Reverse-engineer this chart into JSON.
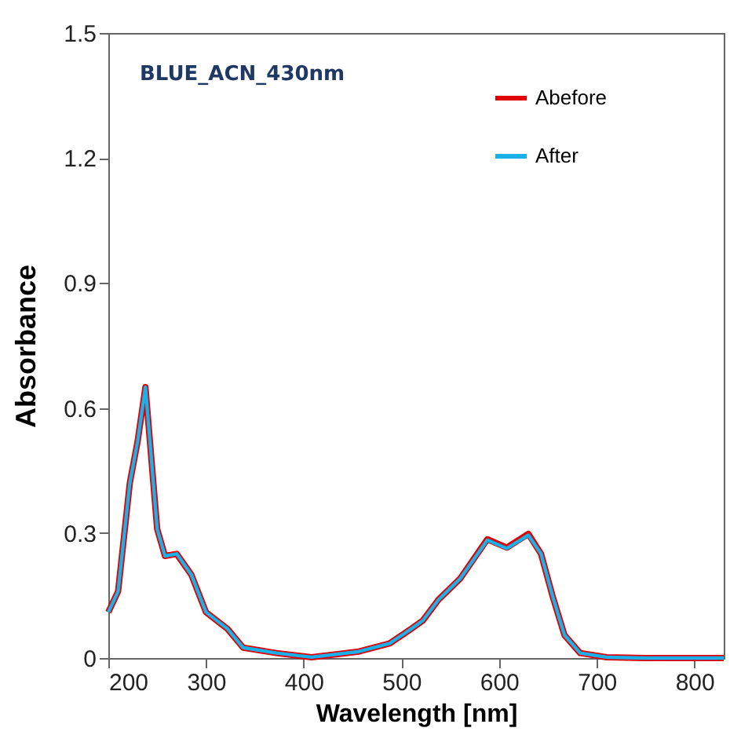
{
  "chart_data": {
    "type": "line",
    "xlabel": "Wavelength [nm]",
    "ylabel": "Absorbance",
    "annotations": [
      "BLUE_ACN_430nm"
    ],
    "x": [
      200,
      210,
      222,
      230,
      238,
      250,
      258,
      270,
      285,
      300,
      322,
      338,
      372,
      408,
      455,
      488,
      510,
      522,
      538,
      560,
      588,
      608,
      630,
      643,
      655,
      667,
      683,
      710,
      750,
      800,
      830
    ],
    "series": [
      {
        "name": "Abefore",
        "color": "#e00000",
        "values": [
          0.11,
          0.16,
          0.42,
          0.52,
          0.65,
          0.31,
          0.245,
          0.25,
          0.2,
          0.11,
          0.07,
          0.025,
          0.012,
          0.002,
          0.015,
          0.035,
          0.07,
          0.09,
          0.14,
          0.19,
          0.285,
          0.265,
          0.298,
          0.25,
          0.147,
          0.055,
          0.012,
          0.002,
          0,
          0,
          0
        ]
      },
      {
        "name": "After",
        "color": "#1ab0e8",
        "values": [
          0.11,
          0.16,
          0.42,
          0.52,
          0.65,
          0.31,
          0.245,
          0.25,
          0.2,
          0.11,
          0.07,
          0.025,
          0.012,
          0.002,
          0.015,
          0.035,
          0.07,
          0.09,
          0.14,
          0.19,
          0.283,
          0.263,
          0.295,
          0.25,
          0.147,
          0.055,
          0.012,
          0.002,
          0,
          0,
          0
        ]
      }
    ],
    "xlim": [
      200,
      830
    ],
    "xticks": [
      200,
      300,
      400,
      500,
      600,
      700,
      800
    ],
    "ylim": [
      0,
      1.5
    ],
    "yticks": [
      0,
      0.3,
      0.6,
      0.9,
      1.2,
      1.5
    ],
    "legend": "top right",
    "grid": false,
    "marker": "none",
    "line_style": "solid"
  }
}
